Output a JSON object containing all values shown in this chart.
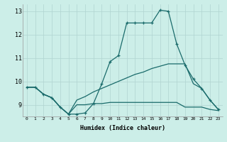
{
  "background_color": "#cceee8",
  "grid_color": "#b0d4d0",
  "line_color": "#1a6b6b",
  "xlim": [
    -0.5,
    23.5
  ],
  "ylim": [
    8.5,
    13.3
  ],
  "xticks": [
    0,
    1,
    2,
    3,
    4,
    5,
    6,
    7,
    8,
    9,
    10,
    11,
    12,
    13,
    14,
    15,
    16,
    17,
    18,
    19,
    20,
    21,
    22,
    23
  ],
  "yticks": [
    9,
    10,
    11,
    12,
    13
  ],
  "xlabel": "Humidex (Indice chaleur)",
  "curve1_x": [
    0,
    1,
    2,
    3,
    4,
    5,
    6,
    7,
    8,
    9,
    10,
    11,
    12,
    13,
    14,
    15,
    16,
    17,
    18,
    19,
    20,
    21,
    22,
    23
  ],
  "curve1_y": [
    9.75,
    9.75,
    9.45,
    9.3,
    8.9,
    8.6,
    8.6,
    8.65,
    9.05,
    9.9,
    10.85,
    11.1,
    12.5,
    12.5,
    12.5,
    12.5,
    13.05,
    13.0,
    11.6,
    10.7,
    10.1,
    9.7,
    9.2,
    8.8
  ],
  "curve2_x": [
    0,
    1,
    2,
    3,
    4,
    5,
    6,
    7,
    8,
    9,
    10,
    11,
    12,
    13,
    14,
    15,
    16,
    17,
    18,
    19,
    20,
    21,
    22,
    23
  ],
  "curve2_y": [
    9.75,
    9.75,
    9.45,
    9.3,
    8.9,
    8.6,
    9.2,
    9.35,
    9.55,
    9.7,
    9.85,
    10.0,
    10.15,
    10.3,
    10.4,
    10.55,
    10.65,
    10.75,
    10.75,
    10.75,
    9.9,
    9.7,
    9.2,
    8.8
  ],
  "curve3_x": [
    0,
    1,
    2,
    3,
    4,
    5,
    6,
    7,
    8,
    9,
    10,
    11,
    12,
    13,
    14,
    15,
    16,
    17,
    18,
    19,
    20,
    21,
    22,
    23
  ],
  "curve3_y": [
    9.75,
    9.75,
    9.45,
    9.3,
    8.9,
    8.6,
    9.0,
    9.0,
    9.05,
    9.05,
    9.1,
    9.1,
    9.1,
    9.1,
    9.1,
    9.1,
    9.1,
    9.1,
    9.1,
    8.9,
    8.9,
    8.9,
    8.8,
    8.75
  ]
}
